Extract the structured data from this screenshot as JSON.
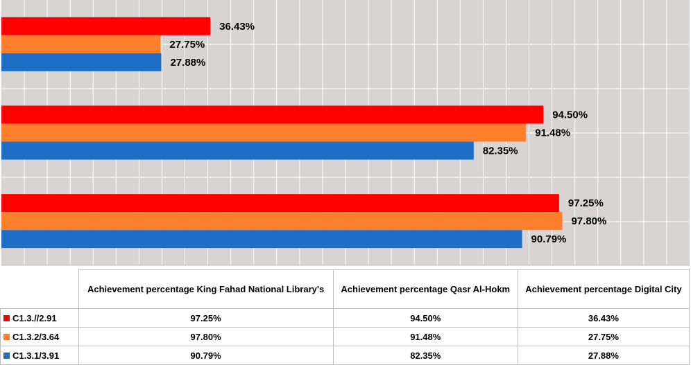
{
  "chart_data": {
    "type": "bar",
    "orientation": "horizontal",
    "categories": [
      "Achievement percentage King Fahad National Library's",
      "Achievement percentage  Qasr Al-Hokm",
      "Achievement percentage Digital City"
    ],
    "series": [
      {
        "name": "C1.3.//2.91",
        "color": "#ff0000",
        "values": [
          97.25,
          94.5,
          36.43
        ],
        "labels": [
          "97.25%",
          "94.50%",
          "36.43%"
        ]
      },
      {
        "name": "C1.3.2/3.64",
        "color": "#fd7f2b",
        "values": [
          97.8,
          91.48,
          27.75
        ],
        "labels": [
          "97.80%",
          "91.48%",
          "27.75%"
        ]
      },
      {
        "name": "C1.3.1/3.91",
        "color": "#1f6ec6",
        "values": [
          90.79,
          82.35,
          27.88
        ],
        "labels": [
          "90.79%",
          "82.35%",
          "27.88%"
        ]
      }
    ],
    "xlim": [
      0,
      120
    ],
    "grid": true,
    "plot_background": "#d9d4d4",
    "grid_color": "#ffffff",
    "data_table": true
  }
}
